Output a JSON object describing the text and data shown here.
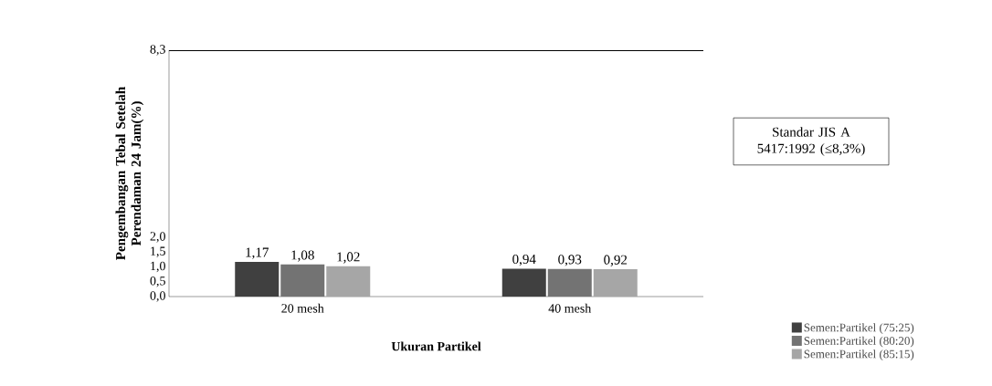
{
  "chart_data": {
    "type": "bar",
    "xlabel": "Ukuran Partikel",
    "ylabel": "Pengembangan Tebal Setelah Perendaman 24 Jam(%)",
    "categories": [
      "20 mesh",
      "40 mesh"
    ],
    "series": [
      {
        "name": "Semen:Partikel (75:25)",
        "color": "#404040",
        "values": [
          1.17,
          0.94
        ],
        "value_labels": [
          "1,17",
          "0,94"
        ]
      },
      {
        "name": "Semen:Partikel (80:20)",
        "color": "#737373",
        "values": [
          1.08,
          0.93
        ],
        "value_labels": [
          "1,08",
          "0,93"
        ]
      },
      {
        "name": "Semen:Partikel (85:15)",
        "color": "#a6a6a6",
        "values": [
          1.02,
          0.92
        ],
        "value_labels": [
          "1,02",
          "0,92"
        ]
      }
    ],
    "ylim": [
      0,
      8.3
    ],
    "yticks": [
      {
        "value": 0,
        "label": "0,0"
      },
      {
        "value": 0.5,
        "label": "0,5"
      },
      {
        "value": 1,
        "label": "1,0"
      },
      {
        "value": 1.5,
        "label": "1,5"
      },
      {
        "value": 2,
        "label": "2,0"
      },
      {
        "value": 8.3,
        "label": "8,3"
      }
    ],
    "ref_lines": [
      {
        "axis": "y",
        "value": 8.3,
        "color": "#000000"
      }
    ],
    "annotations": [
      "Standar JIS A 5417:1992 (≤8,3%)"
    ],
    "legend": "right",
    "grid": false
  }
}
